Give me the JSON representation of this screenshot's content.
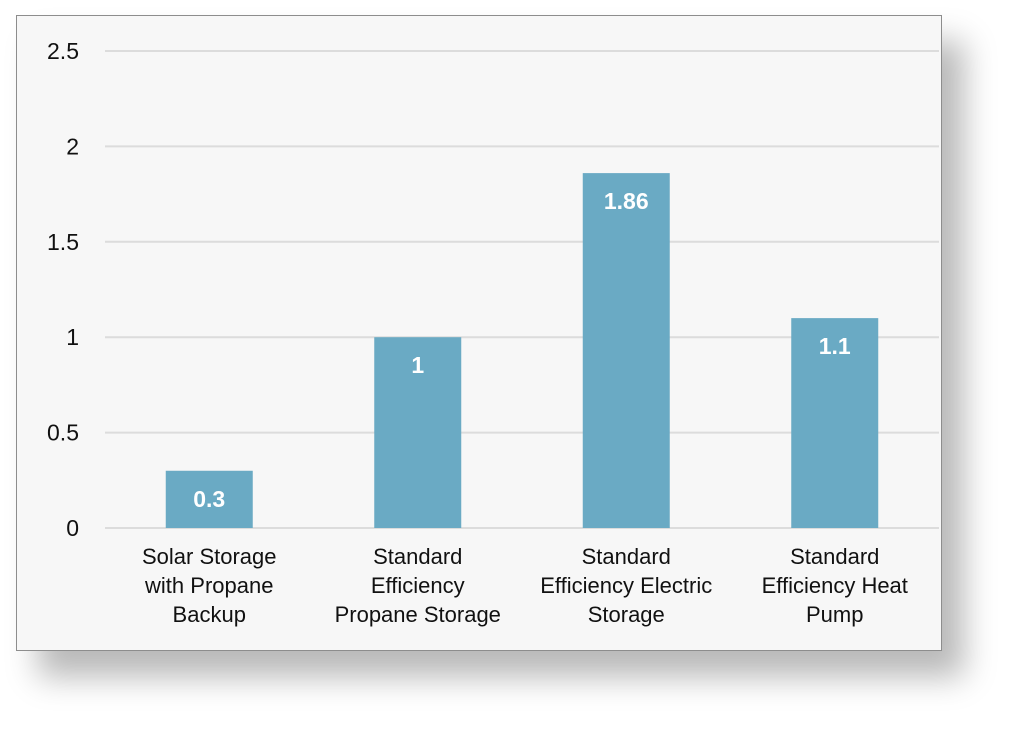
{
  "chart_data": {
    "type": "bar",
    "categories": [
      [
        "Solar Storage",
        "with Propane",
        "Backup"
      ],
      [
        "Standard",
        "Efficiency",
        "Propane Storage"
      ],
      [
        "Standard",
        "Efficiency Electric",
        "Storage"
      ],
      [
        "Standard",
        "Efficiency Heat",
        "Pump"
      ]
    ],
    "values": [
      0.3,
      1,
      1.86,
      1.1
    ],
    "data_labels": [
      "0.3",
      "1",
      "1.86",
      "1.1"
    ],
    "y_ticks": [
      "0",
      "0.5",
      "1",
      "1.5",
      "2",
      "2.5"
    ],
    "ylim": [
      0,
      2.5
    ],
    "grid": true,
    "bar_color": "#6aaac4",
    "grid_color": "#dcdcdc",
    "title": "",
    "xlabel": "",
    "ylabel": ""
  }
}
